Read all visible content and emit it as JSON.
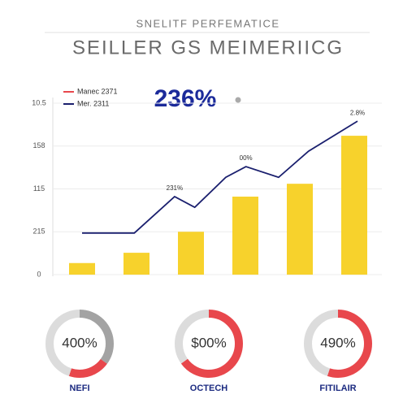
{
  "chart_data": [
    {
      "type": "bar",
      "subtitle": "SNELITF PERFEMATICE",
      "title": "SEILLER GS MEIMERIICG",
      "headline": "236%",
      "categories": [
        null,
        null,
        null,
        null,
        null,
        null
      ],
      "xlim": [
        0,
        6
      ],
      "ylim": [
        0,
        4.2
      ],
      "yticks": [
        0,
        {
          "value": 1,
          "label": "215"
        },
        {
          "value": 2,
          "label": "115"
        },
        {
          "value": 3,
          "label": "158"
        },
        {
          "value": 4,
          "label": "10.5"
        }
      ],
      "grid": true,
      "series": [
        {
          "name": "Manec 2371",
          "color": "#f7d22c",
          "legend_color": "#e8474c",
          "values": [
            0.27,
            0.51,
            1.0,
            1.82,
            2.12,
            3.24
          ]
        },
        {
          "name": "Mer. 2311",
          "type": "line",
          "color": "#1a1f6e",
          "x": [
            0.5,
            1.46,
            2.2,
            2.57,
            3.14,
            3.51,
            4.11,
            4.66,
            5.56
          ],
          "values": [
            0.97,
            0.97,
            1.82,
            1.57,
            2.27,
            2.52,
            2.27,
            2.88,
            3.58
          ]
        }
      ],
      "annotations": [
        {
          "text": "231%",
          "point": 2
        },
        {
          "text": "00%",
          "point": 5
        },
        {
          "text": "2.8%",
          "point": 8
        }
      ]
    },
    {
      "type": "donut",
      "label": "400%",
      "name": "NEFI",
      "values": [
        35,
        20,
        45
      ],
      "colors": [
        "#a3a3a3",
        "#e8474c",
        "#dcdcdc"
      ]
    },
    {
      "type": "donut",
      "label": "$00%",
      "name": "OCTECH",
      "values": [
        65,
        35
      ],
      "colors": [
        "#e8474c",
        "#dcdcdc"
      ]
    },
    {
      "type": "donut",
      "label": "490%",
      "name": "FITILAIR",
      "values": [
        55,
        45
      ],
      "colors": [
        "#e8474c",
        "#dcdcdc"
      ]
    }
  ]
}
